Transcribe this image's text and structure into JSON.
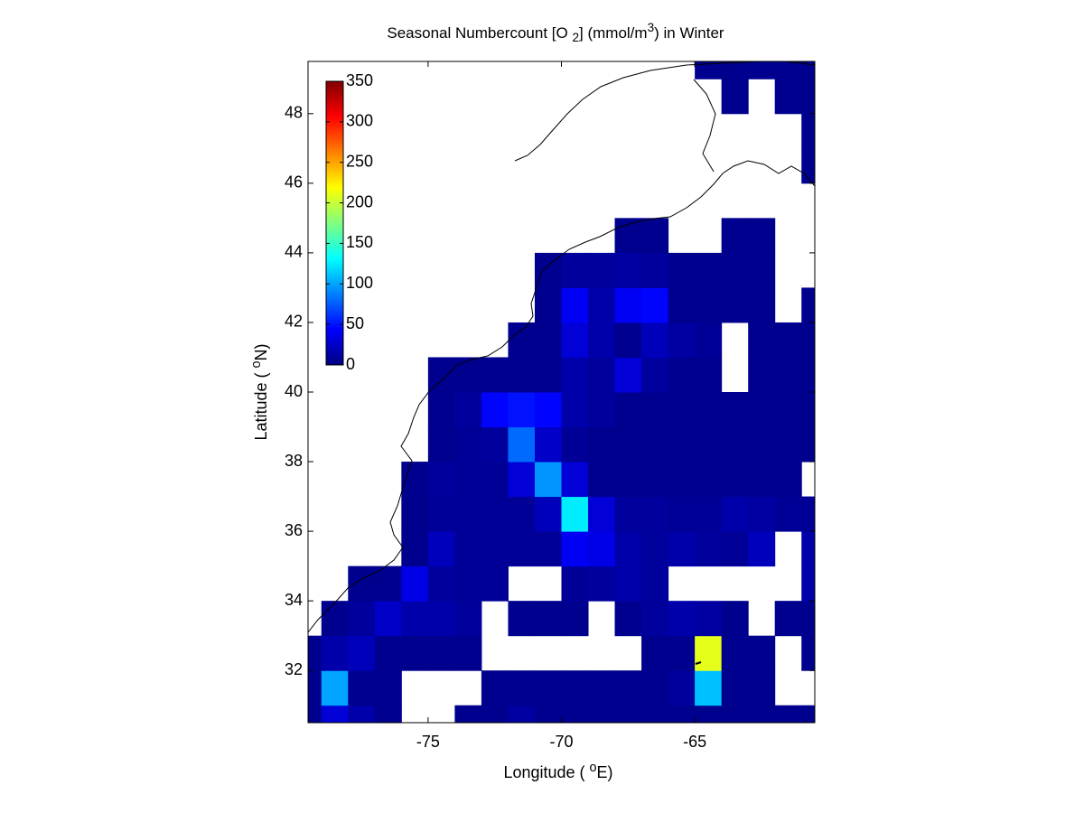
{
  "chart_data": {
    "type": "heatmap",
    "title": [
      {
        "text": "Seasonal Numbercount [O ",
        "baseline": "normal"
      },
      {
        "text": "2",
        "baseline": "sub"
      },
      {
        "text": "] (mmol/m",
        "baseline": "normal"
      },
      {
        "text": "3",
        "baseline": "super"
      },
      {
        "text": ") in  Winter",
        "baseline": "normal"
      }
    ],
    "xlabel": [
      {
        "text": "Longitude ( ",
        "baseline": "normal"
      },
      {
        "text": "o",
        "baseline": "super"
      },
      {
        "text": "E)",
        "baseline": "normal"
      }
    ],
    "ylabel": [
      {
        "text": "Latitude ( ",
        "baseline": "normal"
      },
      {
        "text": "o",
        "baseline": "super"
      },
      {
        "text": "N)",
        "baseline": "normal"
      }
    ],
    "colormap": "jet",
    "clim": [
      0,
      350
    ],
    "cticks": [
      0,
      50,
      100,
      150,
      200,
      250,
      300,
      350
    ],
    "xlim": [
      -79.5,
      -60.5
    ],
    "ylim": [
      30.5,
      49.5
    ],
    "xticks": [
      -75,
      -70,
      -65
    ],
    "yticks": [
      32,
      34,
      36,
      38,
      40,
      42,
      44,
      46,
      48
    ],
    "x": [
      -79.5,
      -78.5,
      -77.5,
      -76.5,
      -75.5,
      -74.5,
      -73.5,
      -72.5,
      -71.5,
      -70.5,
      -69.5,
      -68.5,
      -67.5,
      -66.5,
      -65.5,
      -64.5,
      -63.5,
      -62.5,
      -61.5,
      -60.5
    ],
    "y": [
      30.5,
      31.5,
      32.5,
      33.5,
      34.5,
      35.5,
      36.5,
      37.5,
      38.5,
      39.5,
      40.5,
      41.5,
      42.5,
      43.5,
      44.5,
      45.5,
      46.5,
      47.5,
      48.5,
      49.5
    ],
    "z": [
      [
        5,
        30,
        15,
        5,
        null,
        null,
        5,
        5,
        12,
        5,
        5,
        5,
        5,
        5,
        5,
        5,
        5,
        5,
        5,
        5
      ],
      [
        5,
        100,
        5,
        5,
        null,
        null,
        null,
        5,
        5,
        5,
        5,
        5,
        5,
        5,
        10,
        110,
        5,
        5,
        null,
        null
      ],
      [
        5,
        15,
        20,
        5,
        5,
        5,
        5,
        null,
        null,
        null,
        null,
        null,
        null,
        5,
        5,
        210,
        5,
        5,
        null,
        5
      ],
      [
        null,
        5,
        10,
        25,
        15,
        15,
        10,
        null,
        5,
        5,
        5,
        null,
        5,
        10,
        15,
        12,
        5,
        null,
        5,
        5
      ],
      [
        null,
        null,
        5,
        5,
        35,
        10,
        8,
        8,
        null,
        null,
        8,
        10,
        15,
        10,
        null,
        null,
        null,
        null,
        null,
        15
      ],
      [
        null,
        null,
        null,
        null,
        5,
        20,
        8,
        8,
        8,
        8,
        40,
        35,
        15,
        10,
        15,
        10,
        8,
        20,
        null,
        15
      ],
      [
        null,
        null,
        null,
        null,
        5,
        8,
        8,
        8,
        8,
        20,
        125,
        30,
        10,
        10,
        8,
        8,
        15,
        12,
        8,
        8
      ],
      [
        null,
        null,
        null,
        null,
        5,
        10,
        8,
        8,
        30,
        95,
        30,
        5,
        5,
        5,
        5,
        5,
        5,
        5,
        5,
        null
      ],
      [
        null,
        null,
        null,
        null,
        null,
        5,
        8,
        10,
        80,
        25,
        8,
        5,
        5,
        5,
        5,
        5,
        5,
        5,
        5,
        5
      ],
      [
        null,
        null,
        null,
        null,
        null,
        5,
        10,
        45,
        50,
        45,
        15,
        10,
        5,
        5,
        5,
        5,
        5,
        5,
        5,
        5
      ],
      [
        null,
        null,
        null,
        null,
        null,
        5,
        5,
        5,
        5,
        5,
        15,
        10,
        30,
        10,
        5,
        5,
        null,
        5,
        5,
        5
      ],
      [
        null,
        null,
        null,
        null,
        null,
        null,
        null,
        null,
        5,
        5,
        30,
        15,
        5,
        20,
        12,
        8,
        null,
        5,
        5,
        5
      ],
      [
        null,
        null,
        null,
        null,
        null,
        null,
        null,
        null,
        null,
        5,
        40,
        15,
        40,
        45,
        5,
        5,
        5,
        5,
        null,
        5
      ],
      [
        null,
        null,
        null,
        null,
        null,
        null,
        null,
        null,
        null,
        5,
        10,
        10,
        12,
        10,
        5,
        5,
        5,
        5,
        null,
        null
      ],
      [
        null,
        null,
        null,
        null,
        null,
        null,
        null,
        null,
        null,
        null,
        null,
        null,
        5,
        5,
        null,
        null,
        5,
        5,
        null,
        null
      ],
      [
        null,
        null,
        null,
        null,
        null,
        null,
        null,
        null,
        null,
        null,
        null,
        null,
        null,
        null,
        null,
        null,
        null,
        null,
        null,
        null
      ],
      [
        null,
        null,
        null,
        null,
        null,
        null,
        null,
        null,
        null,
        null,
        null,
        null,
        null,
        null,
        null,
        null,
        null,
        null,
        null,
        5
      ],
      [
        null,
        null,
        null,
        null,
        null,
        null,
        null,
        null,
        null,
        null,
        null,
        null,
        null,
        null,
        null,
        null,
        null,
        null,
        null,
        5
      ],
      [
        null,
        null,
        null,
        null,
        null,
        null,
        null,
        null,
        null,
        null,
        null,
        null,
        null,
        null,
        null,
        null,
        5,
        null,
        5,
        5
      ],
      [
        null,
        null,
        null,
        null,
        null,
        null,
        null,
        null,
        null,
        null,
        null,
        null,
        null,
        null,
        null,
        5,
        5,
        5,
        5,
        5
      ]
    ]
  }
}
